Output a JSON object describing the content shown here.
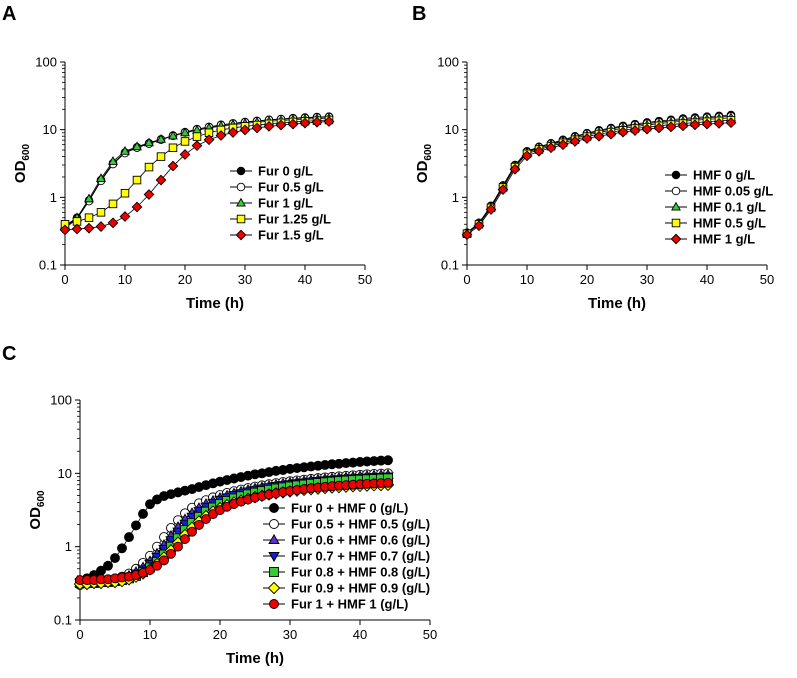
{
  "figure": {
    "panels": [
      {
        "label": "A"
      },
      {
        "label": "B"
      },
      {
        "label": "C"
      }
    ]
  },
  "chart_data": [
    {
      "panel": "A",
      "type": "scatter",
      "xlabel": "Time (h)",
      "ylabel": "OD",
      "ylabel_sub": "600",
      "xlim": [
        0,
        50
      ],
      "ylim": [
        0.1,
        100
      ],
      "yscale": "log",
      "xticks": [
        0,
        10,
        20,
        30,
        40,
        50
      ],
      "yticks": [
        0.1,
        1,
        10,
        100
      ],
      "ytick_labels": [
        "0.1",
        "1",
        "10",
        "100"
      ],
      "legend_position": "center-right",
      "x": [
        0,
        2,
        4,
        6,
        8,
        10,
        12,
        14,
        16,
        18,
        20,
        22,
        24,
        26,
        28,
        30,
        32,
        34,
        36,
        38,
        40,
        42,
        44
      ],
      "series": [
        {
          "name": "Fur 0 g/L",
          "marker": "circle",
          "color": "#000000",
          "values": [
            0.36,
            0.5,
            0.9,
            1.8,
            3.2,
            4.6,
            5.5,
            6.3,
            7.2,
            8.2,
            9.2,
            10.2,
            11.0,
            11.8,
            12.4,
            13.0,
            13.5,
            14.0,
            14.4,
            14.8,
            15.1,
            15.4,
            15.6
          ]
        },
        {
          "name": "Fur 0.5 g/L",
          "marker": "circle-open",
          "color": "#ffffff",
          "values": [
            0.35,
            0.48,
            0.88,
            1.75,
            3.1,
            4.5,
            5.4,
            6.2,
            7.1,
            8.1,
            9.1,
            10.1,
            10.9,
            11.7,
            12.3,
            12.9,
            13.4,
            13.9,
            14.3,
            14.6,
            14.9,
            15.2,
            15.4
          ]
        },
        {
          "name": "Fur 1 g/L",
          "marker": "triangle",
          "color": "#33cc33",
          "values": [
            0.38,
            0.5,
            0.95,
            1.9,
            3.4,
            4.8,
            5.6,
            6.4,
            7.2,
            8.1,
            9.0,
            9.8,
            10.6,
            11.3,
            11.9,
            12.4,
            12.9,
            13.3,
            13.7,
            14.0,
            14.3,
            14.6,
            14.8
          ]
        },
        {
          "name": "Fur 1.25 g/L",
          "marker": "square",
          "color": "#ffff00",
          "values": [
            0.4,
            0.44,
            0.5,
            0.6,
            0.8,
            1.15,
            1.8,
            2.8,
            4.0,
            5.4,
            6.7,
            7.9,
            9.0,
            9.9,
            10.6,
            11.2,
            11.7,
            12.2,
            12.6,
            13.0,
            13.3,
            13.6,
            13.9
          ]
        },
        {
          "name": "Fur 1.5 g/L",
          "marker": "diamond",
          "color": "#ee0000",
          "values": [
            0.33,
            0.34,
            0.35,
            0.37,
            0.42,
            0.52,
            0.72,
            1.1,
            1.8,
            2.9,
            4.3,
            5.8,
            7.1,
            8.2,
            9.1,
            9.9,
            10.6,
            11.2,
            11.7,
            12.1,
            12.5,
            12.9,
            13.2
          ]
        }
      ]
    },
    {
      "panel": "B",
      "type": "scatter",
      "xlabel": "Time (h)",
      "ylabel": "OD",
      "ylabel_sub": "600",
      "xlim": [
        0,
        50
      ],
      "ylim": [
        0.1,
        100
      ],
      "yscale": "log",
      "xticks": [
        0,
        10,
        20,
        30,
        40,
        50
      ],
      "yticks": [
        0.1,
        1,
        10,
        100
      ],
      "ytick_labels": [
        "0.1",
        "1",
        "10",
        "100"
      ],
      "legend_position": "center-right",
      "x": [
        0,
        2,
        4,
        6,
        8,
        10,
        12,
        14,
        16,
        18,
        20,
        22,
        24,
        26,
        28,
        30,
        32,
        34,
        36,
        38,
        40,
        42,
        44
      ],
      "series": [
        {
          "name": "HMF 0 g/L",
          "marker": "circle",
          "color": "#000000",
          "values": [
            0.3,
            0.42,
            0.75,
            1.5,
            3.0,
            4.8,
            5.6,
            6.3,
            7.1,
            8.0,
            8.9,
            9.8,
            10.6,
            11.4,
            12.1,
            12.8,
            13.4,
            14.0,
            14.6,
            15.1,
            15.6,
            16.0,
            16.5
          ]
        },
        {
          "name": "HMF 0.05 g/L",
          "marker": "circle-open",
          "color": "#ffffff",
          "values": [
            0.3,
            0.42,
            0.74,
            1.48,
            2.95,
            4.7,
            5.5,
            6.2,
            6.9,
            7.8,
            8.7,
            9.5,
            10.3,
            11.0,
            11.7,
            12.3,
            12.9,
            13.5,
            14.0,
            14.5,
            15.0,
            15.4,
            15.8
          ]
        },
        {
          "name": "HMF 0.1 g/L",
          "marker": "triangle",
          "color": "#33cc33",
          "values": [
            0.29,
            0.41,
            0.72,
            1.45,
            2.9,
            4.6,
            5.3,
            6.0,
            6.7,
            7.5,
            8.3,
            9.1,
            9.8,
            10.5,
            11.1,
            11.7,
            12.3,
            12.8,
            13.3,
            13.8,
            14.2,
            14.6,
            15.0
          ]
        },
        {
          "name": "HMF 0.5 g/L",
          "marker": "square",
          "color": "#ffff00",
          "values": [
            0.29,
            0.4,
            0.7,
            1.4,
            2.8,
            4.4,
            5.1,
            5.7,
            6.4,
            7.1,
            7.9,
            8.6,
            9.2,
            9.8,
            10.4,
            10.9,
            11.4,
            11.9,
            12.3,
            12.7,
            13.1,
            13.5,
            13.8
          ]
        },
        {
          "name": "HMF 1 g/L",
          "marker": "diamond",
          "color": "#ee0000",
          "values": [
            0.28,
            0.38,
            0.66,
            1.3,
            2.6,
            4.1,
            4.8,
            5.4,
            6.0,
            6.7,
            7.4,
            8.0,
            8.6,
            9.2,
            9.7,
            10.2,
            10.6,
            11.0,
            11.4,
            11.8,
            12.1,
            12.4,
            12.7
          ]
        }
      ]
    },
    {
      "panel": "C",
      "type": "scatter",
      "xlabel": "Time (h)",
      "ylabel": "OD",
      "ylabel_sub": "600",
      "xlim": [
        0,
        50
      ],
      "ylim": [
        0.1,
        100
      ],
      "yscale": "log",
      "xticks": [
        0,
        10,
        20,
        30,
        40,
        50
      ],
      "yticks": [
        0.1,
        1,
        10,
        100
      ],
      "ytick_labels": [
        "0.1",
        "1",
        "10",
        "100"
      ],
      "legend_position": "bottom-right",
      "x": [
        0,
        1,
        2,
        3,
        4,
        5,
        6,
        7,
        8,
        9,
        10,
        11,
        12,
        13,
        14,
        15,
        16,
        17,
        18,
        19,
        20,
        21,
        22,
        23,
        24,
        25,
        26,
        27,
        28,
        29,
        30,
        31,
        32,
        33,
        34,
        35,
        36,
        37,
        38,
        39,
        40,
        41,
        42,
        43,
        44
      ],
      "series": [
        {
          "name": "Fur 0 + HMF 0 (g/L)",
          "marker": "circle",
          "color": "#000000",
          "values": [
            0.33,
            0.37,
            0.41,
            0.47,
            0.55,
            0.7,
            0.95,
            1.35,
            1.95,
            2.8,
            3.8,
            4.4,
            4.9,
            5.2,
            5.5,
            5.8,
            6.1,
            6.5,
            6.9,
            7.3,
            7.7,
            8.1,
            8.5,
            8.9,
            9.3,
            9.7,
            10.0,
            10.4,
            10.8,
            11.1,
            11.5,
            11.8,
            12.1,
            12.4,
            12.7,
            13.0,
            13.3,
            13.5,
            13.8,
            14.0,
            14.3,
            14.5,
            14.7,
            14.9,
            15.1
          ]
        },
        {
          "name": "Fur 0.5 + HMF 0.5 (g/L)",
          "marker": "circle-open",
          "color": "#ffffff",
          "values": [
            0.3,
            0.31,
            0.32,
            0.33,
            0.34,
            0.36,
            0.39,
            0.43,
            0.5,
            0.6,
            0.75,
            1.0,
            1.35,
            1.8,
            2.3,
            2.85,
            3.4,
            3.9,
            4.3,
            4.7,
            5.05,
            5.4,
            5.7,
            6.0,
            6.3,
            6.6,
            6.85,
            7.1,
            7.35,
            7.6,
            7.8,
            8.0,
            8.2,
            8.4,
            8.6,
            8.8,
            8.95,
            9.1,
            9.25,
            9.4,
            9.55,
            9.7,
            9.8,
            9.9,
            10.0
          ]
        },
        {
          "name": "Fur 0.6 + HMF 0.6 (g/L)",
          "marker": "triangle",
          "color": "#5533cc",
          "values": [
            0.32,
            0.32,
            0.33,
            0.33,
            0.34,
            0.35,
            0.37,
            0.4,
            0.45,
            0.52,
            0.63,
            0.8,
            1.05,
            1.4,
            1.85,
            2.35,
            2.85,
            3.35,
            3.8,
            4.2,
            4.6,
            4.95,
            5.3,
            5.6,
            5.9,
            6.2,
            6.45,
            6.7,
            6.95,
            7.2,
            7.4,
            7.6,
            7.8,
            8.0,
            8.2,
            8.35,
            8.5,
            8.65,
            8.8,
            8.95,
            9.1,
            9.2,
            9.3,
            9.4,
            9.5
          ]
        },
        {
          "name": "Fur 0.7 + HMF 0.7 (g/L)",
          "marker": "triangle-down",
          "color": "#1122cc",
          "values": [
            0.32,
            0.32,
            0.33,
            0.33,
            0.34,
            0.35,
            0.36,
            0.39,
            0.43,
            0.49,
            0.58,
            0.72,
            0.93,
            1.22,
            1.6,
            2.05,
            2.55,
            3.05,
            3.5,
            3.95,
            4.35,
            4.7,
            5.05,
            5.35,
            5.65,
            5.95,
            6.2,
            6.45,
            6.7,
            6.9,
            7.1,
            7.3,
            7.5,
            7.7,
            7.85,
            8.0,
            8.15,
            8.3,
            8.45,
            8.55,
            8.65,
            8.75,
            8.85,
            8.95,
            9.05
          ]
        },
        {
          "name": "Fur 0.8 + HMF 0.8 (g/L)",
          "marker": "square",
          "color": "#33cc33",
          "values": [
            0.32,
            0.32,
            0.32,
            0.33,
            0.33,
            0.34,
            0.35,
            0.37,
            0.4,
            0.45,
            0.52,
            0.62,
            0.78,
            1.0,
            1.3,
            1.68,
            2.1,
            2.55,
            3.0,
            3.42,
            3.82,
            4.2,
            4.55,
            4.87,
            5.17,
            5.45,
            5.72,
            5.97,
            6.2,
            6.42,
            6.63,
            6.83,
            7.02,
            7.2,
            7.37,
            7.53,
            7.68,
            7.82,
            7.95,
            8.07,
            8.18,
            8.28,
            8.38,
            8.47,
            8.55
          ]
        },
        {
          "name": "Fur 0.9 + HMF 0.9 (g/L)",
          "marker": "diamond",
          "color": "#ffff00",
          "values": [
            0.31,
            0.31,
            0.32,
            0.32,
            0.33,
            0.33,
            0.34,
            0.36,
            0.39,
            0.43,
            0.49,
            0.58,
            0.71,
            0.89,
            1.13,
            1.44,
            1.8,
            2.2,
            2.6,
            3.0,
            3.35,
            3.68,
            3.98,
            4.25,
            4.5,
            4.73,
            4.95,
            5.15,
            5.33,
            5.5,
            5.66,
            5.81,
            5.95,
            6.08,
            6.2,
            6.31,
            6.41,
            6.5,
            6.59,
            6.67,
            6.74,
            6.81,
            6.87,
            6.92,
            6.97
          ]
        },
        {
          "name": "Fur 1 + HMF 1 (g/L)",
          "marker": "circle",
          "color": "#ee0000",
          "values": [
            0.35,
            0.35,
            0.35,
            0.36,
            0.36,
            0.37,
            0.38,
            0.39,
            0.41,
            0.44,
            0.48,
            0.55,
            0.65,
            0.8,
            1.0,
            1.27,
            1.6,
            1.98,
            2.38,
            2.78,
            3.15,
            3.5,
            3.82,
            4.12,
            4.4,
            4.66,
            4.9,
            5.13,
            5.35,
            5.55,
            5.74,
            5.92,
            6.09,
            6.25,
            6.4,
            6.54,
            6.67,
            6.79,
            6.9,
            7.0,
            7.1,
            7.19,
            7.27,
            7.35,
            7.42
          ]
        }
      ]
    }
  ]
}
